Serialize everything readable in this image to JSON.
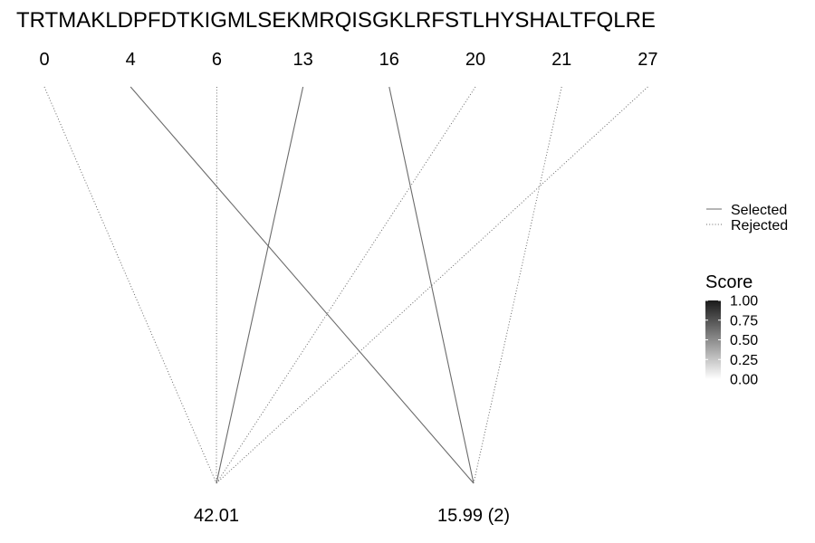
{
  "chart_data": {
    "type": "line",
    "title": "TRTMAKLDPFDTKIGMLSEKMRQISGKLRFSTLHYSHALTFQLRE",
    "top_labels": [
      "0",
      "4",
      "6",
      "13",
      "16",
      "20",
      "21",
      "27"
    ],
    "bottom_labels": [
      "42.01",
      "15.99 (2)"
    ],
    "edges": [
      {
        "from": "0",
        "to": "42.01",
        "status": "Rejected"
      },
      {
        "from": "6",
        "to": "42.01",
        "status": "Rejected"
      },
      {
        "from": "13",
        "to": "42.01",
        "status": "Selected"
      },
      {
        "from": "20",
        "to": "42.01",
        "status": "Rejected"
      },
      {
        "from": "27",
        "to": "42.01",
        "status": "Rejected"
      },
      {
        "from": "4",
        "to": "15.99 (2)",
        "status": "Selected"
      },
      {
        "from": "16",
        "to": "15.99 (2)",
        "status": "Selected"
      },
      {
        "from": "21",
        "to": "15.99 (2)",
        "status": "Rejected"
      }
    ],
    "legend": {
      "linetype": [
        {
          "label": "Selected",
          "style": "solid"
        },
        {
          "label": "Rejected",
          "style": "dotted"
        }
      ],
      "score": {
        "title": "Score",
        "ticks": [
          "1.00",
          "0.75",
          "0.50",
          "0.25",
          "0.00"
        ],
        "range": [
          0,
          1
        ],
        "color_high": "#1a1a1a",
        "color_low": "#ffffff"
      }
    },
    "line_color": "#6b6b6b"
  }
}
